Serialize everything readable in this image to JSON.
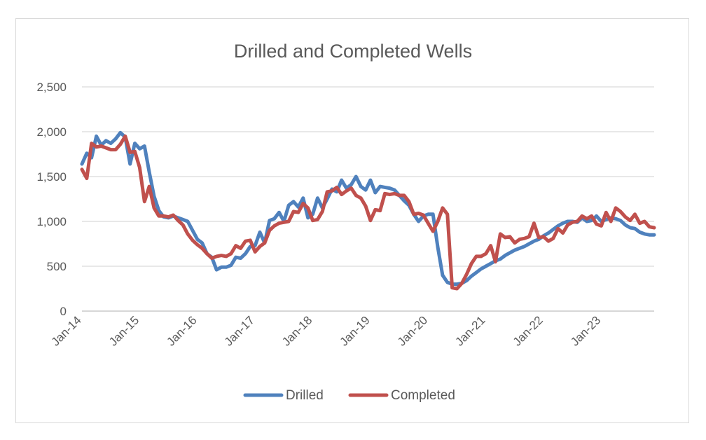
{
  "chart_data": {
    "type": "line",
    "title": "Drilled and Completed Wells",
    "xlabel": "",
    "ylabel": "",
    "ylim": [
      0,
      2500
    ],
    "yticks": [
      0,
      500,
      1000,
      1500,
      2000,
      2500
    ],
    "ytick_labels": [
      "0",
      "500",
      "1,000",
      "1,500",
      "2,000",
      "2,500"
    ],
    "x_start": "2014-01",
    "x_end": "2023-12",
    "xtick_labels": [
      "Jan-14",
      "Jan-15",
      "Jan-16",
      "Jan-17",
      "Jan-18",
      "Jan-19",
      "Jan-20",
      "Jan-21",
      "Jan-22",
      "Jan-23"
    ],
    "grid": "horizontal",
    "legend": "bottom",
    "series": [
      {
        "name": "Drilled",
        "color": "#4f81bd",
        "values": [
          1640,
          1760,
          1710,
          1950,
          1850,
          1900,
          1870,
          1920,
          1990,
          1940,
          1640,
          1870,
          1810,
          1840,
          1550,
          1280,
          1120,
          1050,
          1040,
          1060,
          1040,
          1020,
          1000,
          900,
          800,
          760,
          640,
          600,
          460,
          490,
          490,
          510,
          600,
          590,
          640,
          720,
          730,
          880,
          760,
          1010,
          1030,
          1100,
          1000,
          1180,
          1220,
          1160,
          1260,
          1040,
          1080,
          1260,
          1150,
          1250,
          1360,
          1330,
          1460,
          1370,
          1410,
          1500,
          1390,
          1350,
          1460,
          1320,
          1390,
          1380,
          1370,
          1350,
          1290,
          1230,
          1180,
          1080,
          1000,
          1060,
          1080,
          1080,
          710,
          400,
          320,
          300,
          300,
          310,
          340,
          390,
          430,
          470,
          500,
          530,
          560,
          580,
          620,
          650,
          680,
          700,
          720,
          750,
          780,
          800,
          840,
          870,
          910,
          950,
          980,
          1000,
          1000,
          990,
          1040,
          1000,
          1010,
          1060,
          1000,
          1020,
          1040,
          1030,
          1010,
          960,
          930,
          920,
          880,
          860,
          850,
          850
        ]
      },
      {
        "name": "Completed",
        "color": "#c0504d",
        "values": [
          1580,
          1480,
          1870,
          1830,
          1840,
          1820,
          1800,
          1800,
          1860,
          1950,
          1770,
          1780,
          1600,
          1220,
          1390,
          1150,
          1060,
          1060,
          1050,
          1070,
          1010,
          960,
          860,
          790,
          740,
          700,
          640,
          590,
          610,
          620,
          610,
          640,
          730,
          700,
          780,
          790,
          660,
          720,
          760,
          900,
          950,
          980,
          990,
          1000,
          1110,
          1100,
          1200,
          1150,
          1010,
          1020,
          1110,
          1330,
          1340,
          1380,
          1300,
          1340,
          1370,
          1290,
          1260,
          1170,
          1010,
          1130,
          1120,
          1310,
          1300,
          1310,
          1290,
          1290,
          1220,
          1080,
          1090,
          1070,
          980,
          890,
          1000,
          1150,
          1080,
          260,
          250,
          310,
          410,
          530,
          610,
          610,
          640,
          730,
          550,
          860,
          820,
          830,
          760,
          800,
          810,
          830,
          980,
          820,
          830,
          780,
          810,
          920,
          870,
          960,
          990,
          1000,
          1060,
          1030,
          1060,
          970,
          950,
          1100,
          1000,
          1150,
          1110,
          1050,
          1010,
          1080,
          980,
          1000,
          940,
          930
        ]
      }
    ]
  }
}
